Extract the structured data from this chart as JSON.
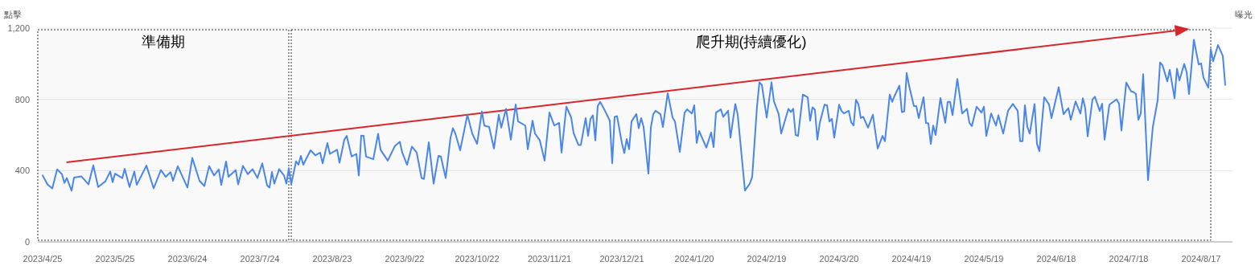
{
  "chart_data": {
    "type": "line",
    "ylabel": "點擊",
    "y2label": "曝光",
    "xlim": [
      "2023-04-23",
      "2024-08-30"
    ],
    "ylim": [
      0,
      1200
    ],
    "yticks": [
      0,
      400,
      800,
      {
        "value": 1200,
        "label": "1,200"
      }
    ],
    "xticks": [
      {
        "value": "2023-04-25",
        "label": "2023/4/25"
      },
      {
        "value": "2023-05-25",
        "label": "2023/5/25"
      },
      {
        "value": "2023-06-24",
        "label": "2023/6/24"
      },
      {
        "value": "2023-07-24",
        "label": "2023/7/24"
      },
      {
        "value": "2023-08-23",
        "label": "2023/8/23"
      },
      {
        "value": "2023-09-22",
        "label": "2023/9/22"
      },
      {
        "value": "2023-10-22",
        "label": "2023/10/22"
      },
      {
        "value": "2023-11-21",
        "label": "2023/11/21"
      },
      {
        "value": "2023-12-21",
        "label": "2023/12/21"
      },
      {
        "value": "2024-01-20",
        "label": "2024/1/20"
      },
      {
        "value": "2024-02-19",
        "label": "2024/2/19"
      },
      {
        "value": "2024-03-20",
        "label": "2024/3/20"
      },
      {
        "value": "2024-04-19",
        "label": "2024/4/19"
      },
      {
        "value": "2024-05-19",
        "label": "2024/5/19"
      },
      {
        "value": "2024-06-18",
        "label": "2024/6/18"
      },
      {
        "value": "2024-07-18",
        "label": "2024/7/18"
      },
      {
        "value": "2024-08-17",
        "label": "2024/8/17"
      }
    ],
    "grid": "y",
    "bands": [
      {
        "axis": "x",
        "from": "2023-04-23",
        "to": "2023-08-05",
        "label": "準備期",
        "color": "#333333"
      },
      {
        "axis": "x",
        "from": "2023-08-06",
        "to": "2024-08-21",
        "label": "爬升期(持續優化)",
        "color": "#333333"
      }
    ],
    "x": [
      "2023-04-25",
      "2023-04-27",
      "2023-04-29",
      "2023-05-01",
      "2023-05-03",
      "2023-05-04",
      "2023-05-05",
      "2023-05-07",
      "2023-05-08",
      "2023-05-11",
      "2023-05-14",
      "2023-05-16",
      "2023-05-18",
      "2023-05-21",
      "2023-05-23",
      "2023-05-24",
      "2023-05-25",
      "2023-05-28",
      "2023-05-29",
      "2023-05-31",
      "2023-06-02",
      "2023-06-03",
      "2023-06-07",
      "2023-06-10",
      "2023-06-13",
      "2023-06-15",
      "2023-06-17",
      "2023-06-18",
      "2023-06-20",
      "2023-06-24",
      "2023-06-26",
      "2023-06-29",
      "2023-07-01",
      "2023-07-03",
      "2023-07-05",
      "2023-07-07",
      "2023-07-08",
      "2023-07-10",
      "2023-07-11",
      "2023-07-14",
      "2023-07-15",
      "2023-07-17",
      "2023-07-19",
      "2023-07-21",
      "2023-07-23",
      "2023-07-25",
      "2023-07-27",
      "2023-07-28",
      "2023-07-29",
      "2023-07-30",
      "2023-08-01",
      "2023-08-03",
      "2023-08-04",
      "2023-08-05",
      "2023-08-06",
      "2023-08-08",
      "2023-08-09",
      "2023-08-10",
      "2023-08-11",
      "2023-08-14",
      "2023-08-16",
      "2023-08-18",
      "2023-08-19",
      "2023-08-21",
      "2023-08-22",
      "2023-08-25",
      "2023-08-26",
      "2023-08-28",
      "2023-08-29",
      "2023-08-31",
      "2023-09-02",
      "2023-09-03",
      "2023-09-04",
      "2023-09-05",
      "2023-09-06",
      "2023-09-09",
      "2023-09-11",
      "2023-09-12",
      "2023-09-15",
      "2023-09-18",
      "2023-09-20",
      "2023-09-21",
      "2023-09-23",
      "2023-09-25",
      "2023-09-27",
      "2023-09-29",
      "2023-09-30",
      "2023-10-02",
      "2023-10-04",
      "2023-10-06",
      "2023-10-07",
      "2023-10-09",
      "2023-10-11",
      "2023-10-12",
      "2023-10-13",
      "2023-10-15",
      "2023-10-18",
      "2023-10-20",
      "2023-10-22",
      "2023-10-24",
      "2023-10-25",
      "2023-10-27",
      "2023-10-29",
      "2023-10-31",
      "2023-11-01",
      "2023-11-03",
      "2023-11-05",
      "2023-11-07",
      "2023-11-08",
      "2023-11-11",
      "2023-11-12",
      "2023-11-14",
      "2023-11-15",
      "2023-11-17",
      "2023-11-19",
      "2023-11-21",
      "2023-11-23",
      "2023-11-25",
      "2023-11-26",
      "2023-11-28",
      "2023-11-30",
      "2023-12-01",
      "2023-12-03",
      "2023-12-04",
      "2023-12-06",
      "2023-12-07",
      "2023-12-08",
      "2023-12-09",
      "2023-12-10",
      "2023-12-11",
      "2023-12-12",
      "2023-12-14",
      "2023-12-16",
      "2023-12-17",
      "2023-12-18",
      "2023-12-19",
      "2023-12-21",
      "2023-12-22",
      "2023-12-23",
      "2023-12-24",
      "2023-12-25",
      "2023-12-27",
      "2023-12-28",
      "2023-12-29",
      "2023-12-30",
      "2024-01-01",
      "2024-01-02",
      "2024-01-03",
      "2024-01-04",
      "2024-01-06",
      "2024-01-07",
      "2024-01-09",
      "2024-01-11",
      "2024-01-12",
      "2024-01-14",
      "2024-01-16",
      "2024-01-17",
      "2024-01-19",
      "2024-01-20",
      "2024-01-21",
      "2024-01-22",
      "2024-01-25",
      "2024-01-27",
      "2024-01-28",
      "2024-01-29",
      "2024-01-31",
      "2024-02-01",
      "2024-02-03",
      "2024-02-04",
      "2024-02-06",
      "2024-02-07",
      "2024-02-10",
      "2024-02-12",
      "2024-02-13",
      "2024-02-15",
      "2024-02-16",
      "2024-02-17",
      "2024-02-19",
      "2024-02-21",
      "2024-02-22",
      "2024-02-24",
      "2024-02-25",
      "2024-02-28",
      "2024-02-29",
      "2024-03-01",
      "2024-03-02",
      "2024-03-03",
      "2024-03-05",
      "2024-03-07",
      "2024-03-08",
      "2024-03-09",
      "2024-03-10",
      "2024-03-11",
      "2024-03-12",
      "2024-03-14",
      "2024-03-15",
      "2024-03-16",
      "2024-03-17",
      "2024-03-18",
      "2024-03-20",
      "2024-03-21",
      "2024-03-22",
      "2024-03-24",
      "2024-03-25",
      "2024-03-26",
      "2024-03-27",
      "2024-03-28",
      "2024-03-29",
      "2024-03-30",
      "2024-04-01",
      "2024-04-03",
      "2024-04-05",
      "2024-04-07",
      "2024-04-08",
      "2024-04-10",
      "2024-04-11",
      "2024-04-12",
      "2024-04-14",
      "2024-04-15",
      "2024-04-16",
      "2024-04-17",
      "2024-04-18",
      "2024-04-20",
      "2024-04-21",
      "2024-04-22",
      "2024-04-24",
      "2024-04-25",
      "2024-04-26",
      "2024-04-27",
      "2024-04-28",
      "2024-04-29",
      "2024-05-01",
      "2024-05-03",
      "2024-05-04",
      "2024-05-05",
      "2024-05-06",
      "2024-05-08",
      "2024-05-10",
      "2024-05-12",
      "2024-05-13",
      "2024-05-14",
      "2024-05-16",
      "2024-05-18",
      "2024-05-19",
      "2024-05-20",
      "2024-05-22",
      "2024-05-24",
      "2024-05-25",
      "2024-05-27",
      "2024-05-29",
      "2024-05-31",
      "2024-06-02",
      "2024-06-03",
      "2024-06-04",
      "2024-06-05",
      "2024-06-06",
      "2024-06-07",
      "2024-06-09",
      "2024-06-10",
      "2024-06-11",
      "2024-06-13",
      "2024-06-15",
      "2024-06-16",
      "2024-06-19",
      "2024-06-21",
      "2024-06-23",
      "2024-06-24",
      "2024-06-26",
      "2024-06-28",
      "2024-06-29",
      "2024-06-30",
      "2024-07-01",
      "2024-07-03",
      "2024-07-04",
      "2024-07-06",
      "2024-07-07",
      "2024-07-08",
      "2024-07-10",
      "2024-07-13",
      "2024-07-14",
      "2024-07-15",
      "2024-07-17",
      "2024-07-19",
      "2024-07-20",
      "2024-07-21",
      "2024-07-22",
      "2024-07-23",
      "2024-07-24",
      "2024-07-26",
      "2024-07-28",
      "2024-07-30",
      "2024-07-31",
      "2024-08-01",
      "2024-08-03",
      "2024-08-04",
      "2024-08-06",
      "2024-08-07",
      "2024-08-08",
      "2024-08-10",
      "2024-08-11",
      "2024-08-12",
      "2024-08-14",
      "2024-08-16",
      "2024-08-17",
      "2024-08-18",
      "2024-08-20",
      "2024-08-21",
      "2024-08-22",
      "2024-08-24",
      "2024-08-26",
      "2024-08-27"
    ],
    "series": [
      {
        "color": "#4a86e8",
        "values": [
          373,
          323,
          300,
          407,
          380,
          331,
          358,
          287,
          361,
          368,
          323,
          430,
          308,
          340,
          395,
          335,
          383,
          358,
          410,
          308,
          395,
          320,
          428,
          300,
          403,
          365,
          391,
          343,
          425,
          305,
          471,
          343,
          313,
          425,
          373,
          407,
          320,
          451,
          365,
          403,
          323,
          426,
          380,
          408,
          358,
          441,
          317,
          305,
          392,
          327,
          408,
          373,
          327,
          414,
          323,
          452,
          433,
          483,
          433,
          514,
          486,
          501,
          441,
          555,
          494,
          517,
          444,
          574,
          595,
          479,
          494,
          373,
          597,
          595,
          479,
          464,
          607,
          517,
          456,
          539,
          562,
          501,
          433,
          535,
          501,
          358,
          353,
          559,
          327,
          483,
          479,
          358,
          585,
          638,
          608,
          514,
          714,
          608,
          550,
          732,
          653,
          645,
          524,
          714,
          641,
          747,
          574,
          771,
          676,
          653,
          520,
          680,
          608,
          570,
          456,
          726,
          653,
          668,
          501,
          759,
          698,
          611,
          544,
          544,
          695,
          595,
          691,
          710,
          570,
          762,
          786,
          736,
          680,
          441,
          702,
          706,
          555,
          498,
          577,
          520,
          676,
          718,
          638,
          695,
          645,
          383,
          641,
          717,
          736,
          717,
          645,
          835,
          698,
          676,
          505,
          726,
          744,
          721,
          767,
          555,
          623,
          529,
          614,
          532,
          726,
          744,
          702,
          736,
          585,
          774,
          714,
          288,
          327,
          365,
          762,
          896,
          881,
          698,
          896,
          789,
          717,
          608,
          747,
          729,
          747,
          600,
          595,
          827,
          812,
          680,
          756,
          741,
          574,
          668,
          771,
          767,
          676,
          691,
          585,
          770,
          736,
          721,
          736,
          671,
          653,
          797,
          774,
          695,
          702,
          641,
          714,
          524,
          595,
          565,
          827,
          786,
          820,
          877,
          729,
          732,
          948,
          877,
          762,
          762,
          695,
          812,
          668,
          665,
          550,
          653,
          600,
          808,
          668,
          786,
          786,
          711,
          915,
          721,
          747,
          668,
          650,
          759,
          726,
          759,
          595,
          721,
          653,
          711,
          608,
          736,
          774,
          736,
          565,
          565,
          767,
          645,
          608,
          774,
          550,
          509,
          812,
          771,
          695,
          868,
          717,
          751,
          686,
          788,
          720,
          806,
          750,
          592,
          800,
          815,
          735,
          776,
          574,
          770,
          800,
          776,
          625,
          894,
          845,
          841,
          830,
          685,
          720,
          942,
          347,
          645,
          795,
          1007,
          992,
          901,
          966,
          806,
          972,
          906,
          999,
          954,
          830,
          1135,
          996,
          1002,
          921,
          866,
          1082,
          1014,
          1105,
          1044,
          881
        ]
      }
    ]
  }
}
